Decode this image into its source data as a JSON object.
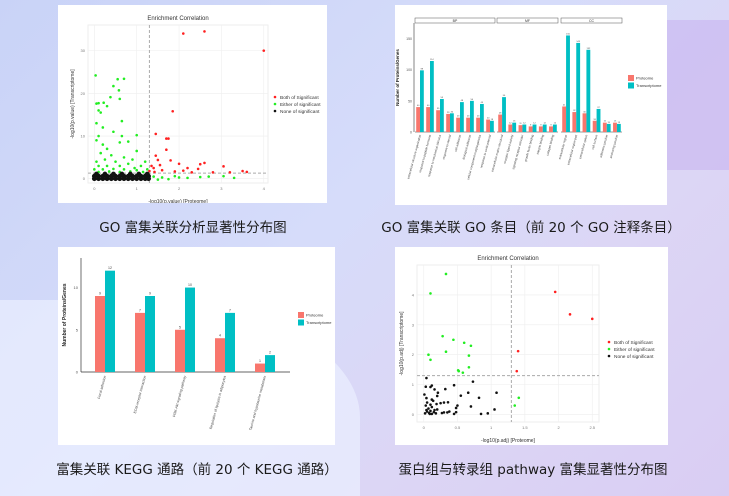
{
  "colors": {
    "red": "#f8766d",
    "teal": "#00bfc4",
    "sig_red": "#ff2020",
    "sig_green": "#22ee22",
    "none": "#111111"
  },
  "captions": [
    "GO 富集关联分析显著性分布图",
    "GO 富集关联 GO 条目（前 20 个 GO 注释条目）",
    "富集关联 KEGG 通路（前 20 个 KEGG 通路）",
    "蛋白组与转录组 pathway 富集显著性分布图"
  ],
  "chart_data": [
    {
      "type": "scatter",
      "title": "Enrichment Correlation",
      "xlabel": "-log10(p.value) [Proteome]",
      "ylabel": "-log10(p.value) [Transcriptome]",
      "xlim": [
        -0.15,
        4.1
      ],
      "ylim": [
        -1,
        36
      ],
      "xticks": [
        0,
        1,
        2,
        3,
        4
      ],
      "yticks": [
        0,
        10,
        20,
        30
      ],
      "threshold": 1.3,
      "legend": [
        "Both of Significant",
        "Either of significant",
        "None of significant"
      ],
      "series": [
        {
          "name": "Both of Significant",
          "points": [
            [
              2.1,
              34
            ],
            [
              2.6,
              34.5
            ],
            [
              4,
              30
            ],
            [
              1.85,
              15.8
            ],
            [
              1.45,
              10.5
            ],
            [
              1.7,
              9.4
            ],
            [
              1.75,
              9.4
            ],
            [
              1.7,
              6.8
            ],
            [
              1.45,
              5.4
            ],
            [
              1.5,
              4.4
            ],
            [
              1.8,
              4.3
            ],
            [
              2.5,
              3.4
            ],
            [
              2.6,
              3.7
            ],
            [
              3.05,
              2.9
            ],
            [
              3.5,
              1.8
            ],
            [
              3.6,
              1.6
            ],
            [
              2.0,
              3.5
            ],
            [
              2.2,
              2.5
            ],
            [
              2.45,
              2.3
            ],
            [
              1.35,
              3
            ],
            [
              1.4,
              2.5
            ],
            [
              1.6,
              2.0
            ],
            [
              2.8,
              1.5
            ],
            [
              3.2,
              1.5
            ],
            [
              2.3,
              1.5
            ],
            [
              1.3,
              1.8
            ],
            [
              1.55,
              3.2
            ],
            [
              1.9,
              1.7
            ],
            [
              2.1,
              1.9
            ],
            [
              1.42,
              1.6
            ]
          ]
        },
        {
          "name": "Either of significant",
          "points": [
            [
              0.03,
              24.2
            ],
            [
              0.55,
              23.3
            ],
            [
              0.7,
              23.4
            ],
            [
              0.45,
              21.7
            ],
            [
              0.58,
              20.7
            ],
            [
              0.38,
              19.1
            ],
            [
              0.6,
              18.7
            ],
            [
              0.05,
              17.6
            ],
            [
              0.1,
              17.7
            ],
            [
              0.22,
              17.8
            ],
            [
              0.3,
              17
            ],
            [
              0.1,
              16
            ],
            [
              0.15,
              15.5
            ],
            [
              0.65,
              13.5
            ],
            [
              0.05,
              13
            ],
            [
              0.2,
              12
            ],
            [
              0.45,
              11
            ],
            [
              1.0,
              10.2
            ],
            [
              0.65,
              10
            ],
            [
              0.1,
              10
            ],
            [
              0.2,
              8
            ],
            [
              0.6,
              8.5
            ],
            [
              0.8,
              8.7
            ],
            [
              0.3,
              7
            ],
            [
              1.0,
              6.5
            ],
            [
              0.05,
              9
            ],
            [
              0.15,
              6
            ],
            [
              0.4,
              5.5
            ],
            [
              0.7,
              5
            ],
            [
              0.9,
              4.5
            ],
            [
              1.2,
              4
            ],
            [
              0.05,
              4
            ],
            [
              0.25,
              4.5
            ],
            [
              0.5,
              4
            ],
            [
              0.8,
              3.5
            ],
            [
              1.1,
              3
            ],
            [
              0.1,
              3
            ],
            [
              0.3,
              3
            ],
            [
              0.6,
              3
            ],
            [
              0.95,
              2.5
            ],
            [
              1.25,
              2.2
            ],
            [
              0.0,
              2.2
            ],
            [
              0.2,
              2.2
            ],
            [
              0.45,
              2.3
            ],
            [
              0.7,
              2.2
            ],
            [
              1.0,
              2
            ],
            [
              0.1,
              1.6
            ],
            [
              0.35,
              1.7
            ],
            [
              0.6,
              1.6
            ],
            [
              0.85,
              1.7
            ],
            [
              1.15,
              1.6
            ],
            [
              1.4,
              0.5
            ],
            [
              1.6,
              0.3
            ],
            [
              1.9,
              0.6
            ],
            [
              2.2,
              0.2
            ],
            [
              2.5,
              0.4
            ],
            [
              2.7,
              0.5
            ],
            [
              3.05,
              0.6
            ],
            [
              3.3,
              0.2
            ],
            [
              1.5,
              -0.2
            ],
            [
              2.0,
              0.3
            ],
            [
              1.75,
              -0.1
            ]
          ]
        },
        {
          "name": "None of significant",
          "points": [
            [
              0,
              0
            ],
            [
              0.1,
              0
            ],
            [
              0.2,
              0
            ],
            [
              0.3,
              0
            ],
            [
              0.4,
              0
            ],
            [
              0.5,
              0
            ],
            [
              0.6,
              0
            ],
            [
              0.7,
              0
            ],
            [
              0.8,
              0
            ],
            [
              0.9,
              0
            ],
            [
              1.0,
              0
            ],
            [
              1.1,
              0
            ],
            [
              1.2,
              0
            ],
            [
              1.28,
              0
            ],
            [
              0,
              0.6
            ],
            [
              0.1,
              0.6
            ],
            [
              0.2,
              0.6
            ],
            [
              0.3,
              0.6
            ],
            [
              0.4,
              0.6
            ],
            [
              0.5,
              0.6
            ],
            [
              0.6,
              0.6
            ],
            [
              0.7,
              0.6
            ],
            [
              0.8,
              0.6
            ],
            [
              0.9,
              0.6
            ],
            [
              1.0,
              0.6
            ],
            [
              1.1,
              0.6
            ],
            [
              1.2,
              0.6
            ],
            [
              1.28,
              0.6
            ],
            [
              0.05,
              1.1
            ],
            [
              0.25,
              1.1
            ],
            [
              0.45,
              1.1
            ],
            [
              0.65,
              1.1
            ],
            [
              0.85,
              1.1
            ],
            [
              1.05,
              1.1
            ],
            [
              1.25,
              1.1
            ]
          ]
        }
      ]
    },
    {
      "type": "bar",
      "ylabel": "Number of Proteins/Genes",
      "ylim": [
        0,
        175
      ],
      "yticks": [
        0,
        50,
        100,
        150
      ],
      "legend": [
        "Proteome",
        "Transcriptome"
      ],
      "facets": [
        {
          "name": "BP",
          "categories": [
            "extracellular structure organization",
            "response to peptide hormone",
            "response to mechanical stimulus",
            "response to steroid",
            "cell adhesion",
            "biological adhesion",
            "cellular component morphogenesis",
            "response to corticosteroid"
          ],
          "proteome": [
            40,
            40,
            35,
            29,
            23,
            23,
            23,
            20
          ],
          "transcriptome": [
            99,
            114,
            53,
            30,
            48,
            50,
            45,
            18
          ]
        },
        {
          "name": "MF",
          "categories": [
            "extracellular matrix structural",
            "receptor ligand activity",
            "signaling receptor activator",
            "growth factor binding",
            "integrin binding",
            "collagen binding"
          ],
          "proteome": [
            28,
            12,
            11,
            9,
            9,
            9
          ],
          "transcriptome": [
            56,
            15,
            12,
            12,
            12,
            12
          ]
        },
        {
          "name": "CC",
          "categories": [
            "extracellular region",
            "extracellular region part",
            "extracellular space",
            "cell surface",
            "adherens junction",
            "anchoring junction"
          ],
          "proteome": [
            41,
            32,
            30,
            18,
            15,
            15
          ],
          "transcriptome": [
            155,
            143,
            132,
            37,
            13,
            13
          ]
        }
      ]
    },
    {
      "type": "bar",
      "ylabel": "Number of Proteins/Genes",
      "ylim": [
        0,
        13.5
      ],
      "yticks": [
        0,
        5,
        10
      ],
      "legend": [
        "Proteome",
        "Transcriptome"
      ],
      "categories": [
        "Focal adhesion",
        "ECM-receptor interaction",
        "PI3K-Akt signaling pathway",
        "Regulation of lipolysis in adipocytes",
        "Taurine and hypotaurine metabolism"
      ],
      "series": [
        {
          "name": "Proteome",
          "values": [
            9,
            7,
            5,
            4,
            1
          ]
        },
        {
          "name": "Transcriptome",
          "values": [
            12,
            9,
            10,
            7,
            2
          ]
        }
      ]
    },
    {
      "type": "scatter",
      "title": "Enrichment Correlation",
      "xlabel": "-log10(p.adj) [Proteome]",
      "ylabel": "-log10(p.adj) [Transcriptome]",
      "xlim": [
        -0.1,
        2.6
      ],
      "ylim": [
        -0.25,
        5.0
      ],
      "xticks": [
        0.0,
        0.5,
        1.0,
        1.5,
        2.0,
        2.5
      ],
      "yticks": [
        0,
        1,
        2,
        3,
        4
      ],
      "threshold": 1.3,
      "legend": [
        "Both of Significant",
        "Either of significant",
        "None of significant"
      ],
      "series": [
        {
          "name": "Both of Significant",
          "points": [
            [
              1.95,
              4.1
            ],
            [
              2.17,
              3.35
            ],
            [
              2.5,
              3.2
            ],
            [
              1.4,
              2.12
            ],
            [
              1.38,
              1.45
            ]
          ]
        },
        {
          "name": "Either of significant",
          "points": [
            [
              0.33,
              4.7
            ],
            [
              0.1,
              4.05
            ],
            [
              0.28,
              2.62
            ],
            [
              0.44,
              2.5
            ],
            [
              0.6,
              2.4
            ],
            [
              0.7,
              2.3
            ],
            [
              0.07,
              2.0
            ],
            [
              0.33,
              2.1
            ],
            [
              0.67,
              1.97
            ],
            [
              0.1,
              1.83
            ],
            [
              0.67,
              1.58
            ],
            [
              0.51,
              1.48
            ],
            [
              0.52,
              1.45
            ],
            [
              0.58,
              1.4
            ],
            [
              1.41,
              0.56
            ],
            [
              1.35,
              0.3
            ]
          ]
        },
        {
          "name": "None of significant",
          "points": [
            [
              0.04,
              1.22
            ],
            [
              0.03,
              0.93
            ],
            [
              0.1,
              0.92
            ],
            [
              0.12,
              0.97
            ],
            [
              0.16,
              0.84
            ],
            [
              0.01,
              0.67
            ],
            [
              0.12,
              0.5
            ],
            [
              0.14,
              0.46
            ],
            [
              0.04,
              0.55
            ],
            [
              0.05,
              0.4
            ],
            [
              0.03,
              0.3
            ],
            [
              0.1,
              0.33
            ],
            [
              0.2,
              0.62
            ],
            [
              0.21,
              0.73
            ],
            [
              0.19,
              0.35
            ],
            [
              0.25,
              0.38
            ],
            [
              0.32,
              0.85
            ],
            [
              0.45,
              0.98
            ],
            [
              0.66,
              0.73
            ],
            [
              0.73,
              1.1
            ],
            [
              0.55,
              0.63
            ],
            [
              0.82,
              0.56
            ],
            [
              1.08,
              0.73
            ],
            [
              0.3,
              0.4
            ],
            [
              0.36,
              0.41
            ],
            [
              0.48,
              0.22
            ],
            [
              0.5,
              0.3
            ],
            [
              0.3,
              0.07
            ],
            [
              0.27,
              0.05
            ],
            [
              0.35,
              0.07
            ],
            [
              0.38,
              0.1
            ],
            [
              0.45,
              0.02
            ],
            [
              0.48,
              0.08
            ],
            [
              0.2,
              0.17
            ],
            [
              0.7,
              0.27
            ],
            [
              0.85,
              0.02
            ],
            [
              0.95,
              0.04
            ],
            [
              1.05,
              0.17
            ],
            [
              0.05,
              0.1
            ],
            [
              0.08,
              0.05
            ],
            [
              0.1,
              0.12
            ],
            [
              0.12,
              0.02
            ],
            [
              0.15,
              0.08
            ],
            [
              0.07,
              0.2
            ],
            [
              0.12,
              0.25
            ],
            [
              0.16,
              0.15
            ],
            [
              0.02,
              0.04
            ],
            [
              0.04,
              0.15
            ],
            [
              0.09,
              0.02
            ],
            [
              0.18,
              0.04
            ]
          ]
        }
      ]
    }
  ]
}
